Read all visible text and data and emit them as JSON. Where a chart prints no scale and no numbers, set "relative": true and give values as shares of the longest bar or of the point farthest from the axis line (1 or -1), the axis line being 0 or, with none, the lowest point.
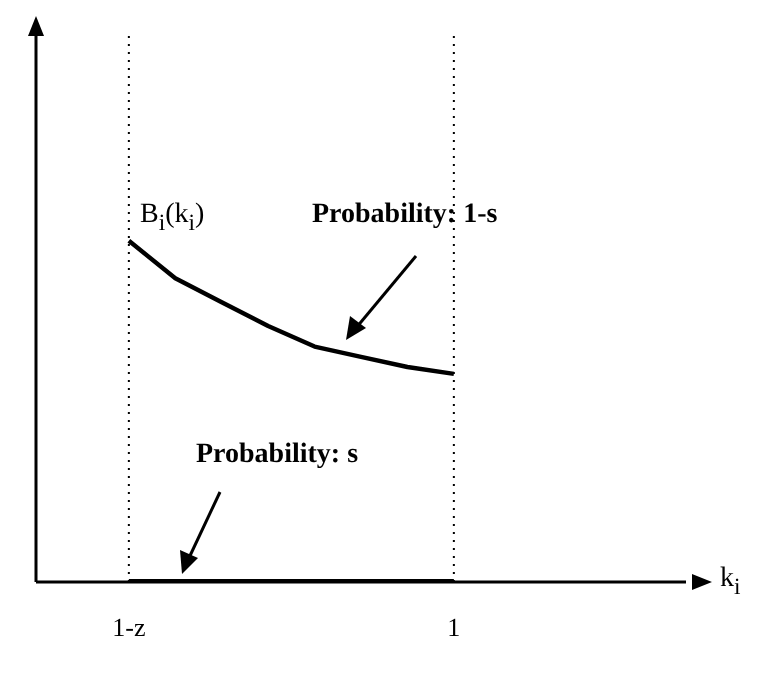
{
  "chart_data": {
    "type": "line",
    "relative": true,
    "categories": [
      "1-z",
      null,
      null,
      null,
      null,
      null,
      null,
      "1"
    ],
    "series": [
      {
        "color": "#000000",
        "values": [
          1,
          0.89,
          0.82,
          0.75,
          0.69,
          0.66,
          0.63,
          0.61
        ]
      },
      {
        "color": "#000000",
        "values": [
          0,
          0,
          0,
          0,
          0,
          0,
          0,
          0
        ]
      }
    ],
    "ref_lines": [
      {
        "axis": "x",
        "value": "1-z",
        "line_style": "dotted",
        "color": "#000000"
      },
      {
        "axis": "x",
        "value": "1",
        "line_style": "dotted",
        "color": "#000000"
      }
    ],
    "annotations": [
      "B$_{i}$(k$_{i}$)",
      "Probability: 1-s",
      "Probability: s",
      "k$_{i}$"
    ],
    "marker": "none",
    "line_style": "solid",
    "grid": false,
    "legend": false
  }
}
